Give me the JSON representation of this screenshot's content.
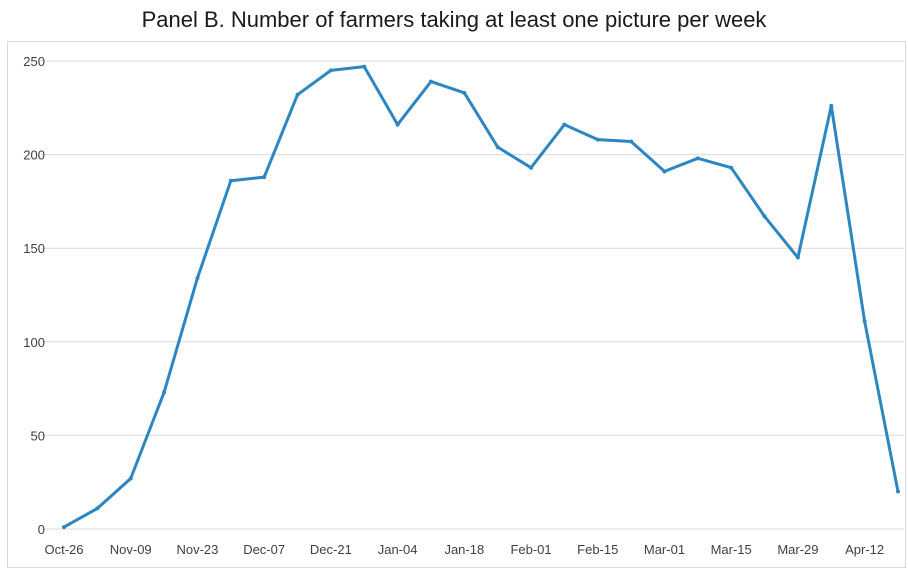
{
  "chart_data": {
    "type": "line",
    "title": "Panel B. Number of farmers taking at least one picture per week",
    "xlabel": "",
    "ylabel": "",
    "ylim": [
      0,
      250
    ],
    "yticks": [
      0,
      50,
      100,
      150,
      200,
      250
    ],
    "x_tick_labels": [
      "Oct-26",
      "Nov-09",
      "Nov-23",
      "Dec-07",
      "Dec-21",
      "Jan-04",
      "Jan-18",
      "Feb-01",
      "Feb-15",
      "Mar-01",
      "Mar-15",
      "Mar-29",
      "Apr-12"
    ],
    "x": [
      "Oct-26",
      "Nov-02",
      "Nov-09",
      "Nov-16",
      "Nov-23",
      "Nov-30",
      "Dec-07",
      "Dec-14",
      "Dec-21",
      "Dec-28",
      "Jan-04",
      "Jan-11",
      "Jan-18",
      "Jan-25",
      "Feb-01",
      "Feb-08",
      "Feb-15",
      "Feb-22",
      "Mar-01",
      "Mar-08",
      "Mar-15",
      "Mar-22",
      "Mar-29",
      "Apr-05",
      "Apr-12",
      "Apr-19"
    ],
    "series": [
      {
        "values": [
          1,
          11,
          27,
          73,
          134,
          186,
          188,
          232,
          245,
          247,
          216,
          239,
          233,
          204,
          193,
          216,
          208,
          207,
          191,
          198,
          193,
          167,
          145,
          226,
          111,
          20
        ],
        "color": "#2e86c1"
      }
    ],
    "grid": true,
    "legend": "none"
  }
}
